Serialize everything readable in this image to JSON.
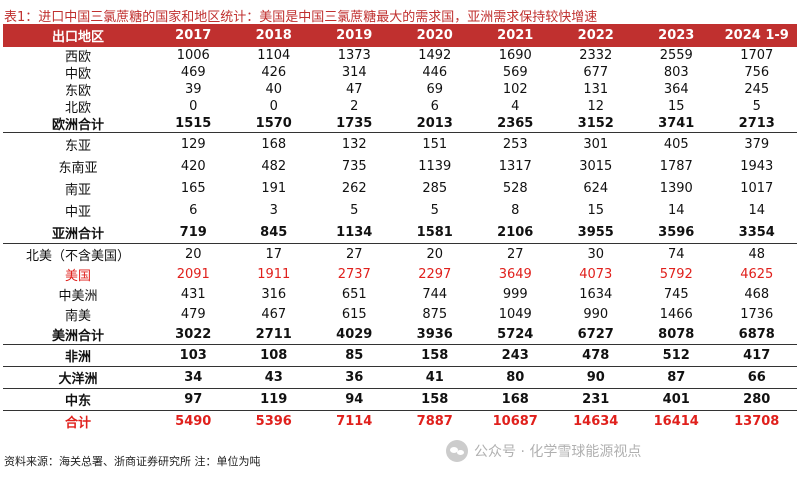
{
  "title": "表1：进口中国三氯蔗糖的国家和地区统计：美国是中国三氯蔗糖最大的需求国，亚洲需求保持较快增速",
  "columns": [
    "出口地区",
    "2017",
    "2018",
    "2019",
    "2020",
    "2021",
    "2022",
    "2023",
    "2024 1-9"
  ],
  "rows": [
    {
      "label": "西欧",
      "values": [
        "1006",
        "1104",
        "1373",
        "1492",
        "1690",
        "2332",
        "2559",
        "1707"
      ]
    },
    {
      "label": "中欧",
      "values": [
        "469",
        "426",
        "314",
        "446",
        "569",
        "677",
        "803",
        "756"
      ]
    },
    {
      "label": "东欧",
      "values": [
        "39",
        "40",
        "47",
        "69",
        "102",
        "131",
        "364",
        "245"
      ]
    },
    {
      "label": "北欧",
      "values": [
        "0",
        "0",
        "2",
        "6",
        "4",
        "12",
        "15",
        "5"
      ]
    },
    {
      "label": "欧洲合计",
      "values": [
        "1515",
        "1570",
        "1735",
        "2013",
        "2365",
        "3152",
        "3741",
        "2713"
      ]
    },
    {
      "label": "东亚",
      "values": [
        "129",
        "168",
        "132",
        "151",
        "253",
        "301",
        "405",
        "379"
      ]
    },
    {
      "label": "东南亚",
      "values": [
        "420",
        "482",
        "735",
        "1139",
        "1317",
        "3015",
        "1787",
        "1943"
      ]
    },
    {
      "label": "南亚",
      "values": [
        "165",
        "191",
        "262",
        "285",
        "528",
        "624",
        "1390",
        "1017"
      ]
    },
    {
      "label": "中亚",
      "values": [
        "6",
        "3",
        "5",
        "5",
        "8",
        "15",
        "14",
        "14"
      ]
    },
    {
      "label": "亚洲合计",
      "values": [
        "719",
        "845",
        "1134",
        "1581",
        "2106",
        "3955",
        "3596",
        "3354"
      ]
    },
    {
      "label": "北美（不含美国）",
      "values": [
        "20",
        "17",
        "27",
        "20",
        "27",
        "30",
        "74",
        "48"
      ]
    },
    {
      "label": "美国",
      "values": [
        "2091",
        "1911",
        "2737",
        "2297",
        "3649",
        "4073",
        "5792",
        "4625"
      ]
    },
    {
      "label": "中美洲",
      "values": [
        "431",
        "316",
        "651",
        "744",
        "999",
        "1634",
        "745",
        "468"
      ]
    },
    {
      "label": "南美",
      "values": [
        "479",
        "467",
        "615",
        "875",
        "1049",
        "990",
        "1466",
        "1736"
      ]
    },
    {
      "label": "美洲合计",
      "values": [
        "3022",
        "2711",
        "4029",
        "3936",
        "5724",
        "6727",
        "8078",
        "6878"
      ]
    },
    {
      "label": "非洲",
      "values": [
        "103",
        "108",
        "85",
        "158",
        "243",
        "478",
        "512",
        "417"
      ]
    },
    {
      "label": "大洋洲",
      "values": [
        "34",
        "43",
        "36",
        "41",
        "80",
        "90",
        "87",
        "66"
      ]
    },
    {
      "label": "中东",
      "values": [
        "97",
        "119",
        "94",
        "158",
        "168",
        "231",
        "401",
        "280"
      ]
    },
    {
      "label": "合计",
      "values": [
        "5490",
        "5396",
        "7114",
        "7887",
        "10687",
        "14634",
        "16414",
        "13708"
      ]
    }
  ],
  "footer": "资料来源：海关总署、浙商证券研究所 注：单位为吨",
  "watermark": "公众号 · 化学雪球能源视点",
  "accent_color": "#c0302f",
  "highlight_color": "#e0201c"
}
